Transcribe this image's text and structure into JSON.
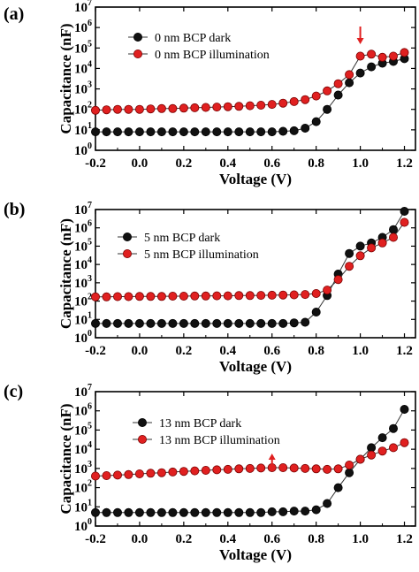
{
  "chart_data": [
    {
      "type": "line",
      "panel_label": "(a)",
      "xlabel": "Voltage (V)",
      "ylabel": "Capacitance (nF)",
      "xlim": [
        -0.2,
        1.25
      ],
      "ylim_log10": [
        0,
        7
      ],
      "y_scale": "log",
      "xticks": [
        "-0.2",
        "0.0",
        "0.2",
        "0.4",
        "0.6",
        "0.8",
        "1.0",
        "1.2"
      ],
      "yticks": [
        {
          "base": "10",
          "exp": "0"
        },
        {
          "base": "10",
          "exp": "1"
        },
        {
          "base": "10",
          "exp": "2"
        },
        {
          "base": "10",
          "exp": "3"
        },
        {
          "base": "10",
          "exp": "4"
        },
        {
          "base": "10",
          "exp": "5"
        },
        {
          "base": "10",
          "exp": "6"
        },
        {
          "base": "10",
          "exp": "7"
        }
      ],
      "legend_position": "top-right",
      "grid": false,
      "x": [
        -0.2,
        -0.15,
        -0.1,
        -0.05,
        0.0,
        0.05,
        0.1,
        0.15,
        0.2,
        0.25,
        0.3,
        0.35,
        0.4,
        0.45,
        0.5,
        0.55,
        0.6,
        0.65,
        0.7,
        0.75,
        0.8,
        0.85,
        0.9,
        0.95,
        1.0,
        1.05,
        1.1,
        1.15,
        1.2
      ],
      "series": [
        {
          "name": "0 nm BCP dark",
          "color": "#111111",
          "values": [
            8,
            8,
            8,
            8,
            8,
            8,
            8,
            8,
            8,
            8,
            8,
            8,
            8,
            8,
            8,
            8,
            8,
            8.5,
            9,
            12,
            25,
            100,
            500,
            2000,
            6000,
            12000,
            18000,
            22000,
            30000
          ]
        },
        {
          "name": "0 nm BCP illumination",
          "color": "#e02020",
          "values": [
            90,
            95,
            100,
            100,
            100,
            105,
            110,
            110,
            115,
            120,
            125,
            130,
            135,
            140,
            150,
            160,
            175,
            200,
            240,
            300,
            450,
            800,
            1800,
            5000,
            40000,
            50000,
            35000,
            40000,
            60000
          ]
        }
      ],
      "annotations": [
        {
          "type": "arrow",
          "x": 1.0,
          "direction": "down",
          "color": "#e02020"
        }
      ]
    },
    {
      "type": "line",
      "panel_label": "(b)",
      "xlabel": "Voltage (V)",
      "ylabel": "Capacitance (nF)",
      "xlim": [
        -0.2,
        1.25
      ],
      "ylim_log10": [
        0,
        7
      ],
      "y_scale": "log",
      "xticks": [
        "-0.2",
        "0.0",
        "0.2",
        "0.4",
        "0.6",
        "0.8",
        "1.0",
        "1.2"
      ],
      "yticks": [
        {
          "base": "10",
          "exp": "0"
        },
        {
          "base": "10",
          "exp": "1"
        },
        {
          "base": "10",
          "exp": "2"
        },
        {
          "base": "10",
          "exp": "3"
        },
        {
          "base": "10",
          "exp": "4"
        },
        {
          "base": "10",
          "exp": "5"
        },
        {
          "base": "10",
          "exp": "6"
        },
        {
          "base": "10",
          "exp": "7"
        }
      ],
      "legend_position": "top-left",
      "grid": false,
      "x": [
        -0.2,
        -0.15,
        -0.1,
        -0.05,
        0.0,
        0.05,
        0.1,
        0.15,
        0.2,
        0.25,
        0.3,
        0.35,
        0.4,
        0.45,
        0.5,
        0.55,
        0.6,
        0.65,
        0.7,
        0.75,
        0.8,
        0.85,
        0.9,
        0.95,
        1.0,
        1.05,
        1.1,
        1.15,
        1.2
      ],
      "series": [
        {
          "name": "5 nm BCP dark",
          "color": "#111111",
          "values": [
            6,
            6,
            6,
            6,
            6,
            6,
            6,
            6,
            6,
            6,
            6,
            6,
            6,
            6,
            6,
            6,
            6,
            6,
            6.5,
            7,
            25,
            200,
            3000,
            40000,
            100000,
            150000,
            300000,
            800000,
            8000000
          ]
        },
        {
          "name": "5 nm BCP illumination",
          "color": "#e02020",
          "values": [
            170,
            170,
            175,
            175,
            180,
            180,
            180,
            185,
            185,
            190,
            190,
            195,
            195,
            200,
            200,
            205,
            210,
            215,
            220,
            230,
            260,
            400,
            1500,
            8000,
            30000,
            80000,
            150000,
            300000,
            2000000
          ]
        }
      ],
      "annotations": []
    },
    {
      "type": "line",
      "panel_label": "(c)",
      "xlabel": "Voltage (V)",
      "ylabel": "Capacitance (nF)",
      "xlim": [
        -0.2,
        1.25
      ],
      "ylim_log10": [
        0,
        7
      ],
      "y_scale": "log",
      "xticks": [
        "-0.2",
        "0.0",
        "0.2",
        "0.4",
        "0.6",
        "0.8",
        "1.0",
        "1.2"
      ],
      "yticks": [
        {
          "base": "10",
          "exp": "0"
        },
        {
          "base": "10",
          "exp": "1"
        },
        {
          "base": "10",
          "exp": "2"
        },
        {
          "base": "10",
          "exp": "3"
        },
        {
          "base": "10",
          "exp": "4"
        },
        {
          "base": "10",
          "exp": "5"
        },
        {
          "base": "10",
          "exp": "6"
        },
        {
          "base": "10",
          "exp": "7"
        }
      ],
      "legend_position": "top-left",
      "grid": false,
      "x": [
        -0.2,
        -0.15,
        -0.1,
        -0.05,
        0.0,
        0.05,
        0.1,
        0.15,
        0.2,
        0.25,
        0.3,
        0.35,
        0.4,
        0.45,
        0.5,
        0.55,
        0.6,
        0.65,
        0.7,
        0.75,
        0.8,
        0.85,
        0.9,
        0.95,
        1.0,
        1.05,
        1.1,
        1.15,
        1.2
      ],
      "series": [
        {
          "name": "13 nm BCP dark",
          "color": "#111111",
          "values": [
            5,
            5,
            5,
            5,
            5,
            5,
            5,
            5,
            5,
            5,
            5,
            5,
            5,
            5,
            5,
            5,
            5.5,
            5.5,
            6,
            6,
            7,
            15,
            100,
            600,
            3000,
            12000,
            40000,
            120000,
            1200000
          ]
        },
        {
          "name": "13 nm BCP illumination",
          "color": "#e02020",
          "values": [
            400,
            420,
            450,
            480,
            520,
            560,
            600,
            650,
            700,
            750,
            800,
            850,
            900,
            950,
            1000,
            1050,
            1100,
            1100,
            1050,
            1000,
            950,
            900,
            950,
            1500,
            3000,
            5000,
            8000,
            12000,
            22000
          ]
        }
      ],
      "annotations": [
        {
          "type": "arrow",
          "x": 0.6,
          "direction": "up",
          "color": "#e02020"
        }
      ]
    }
  ]
}
